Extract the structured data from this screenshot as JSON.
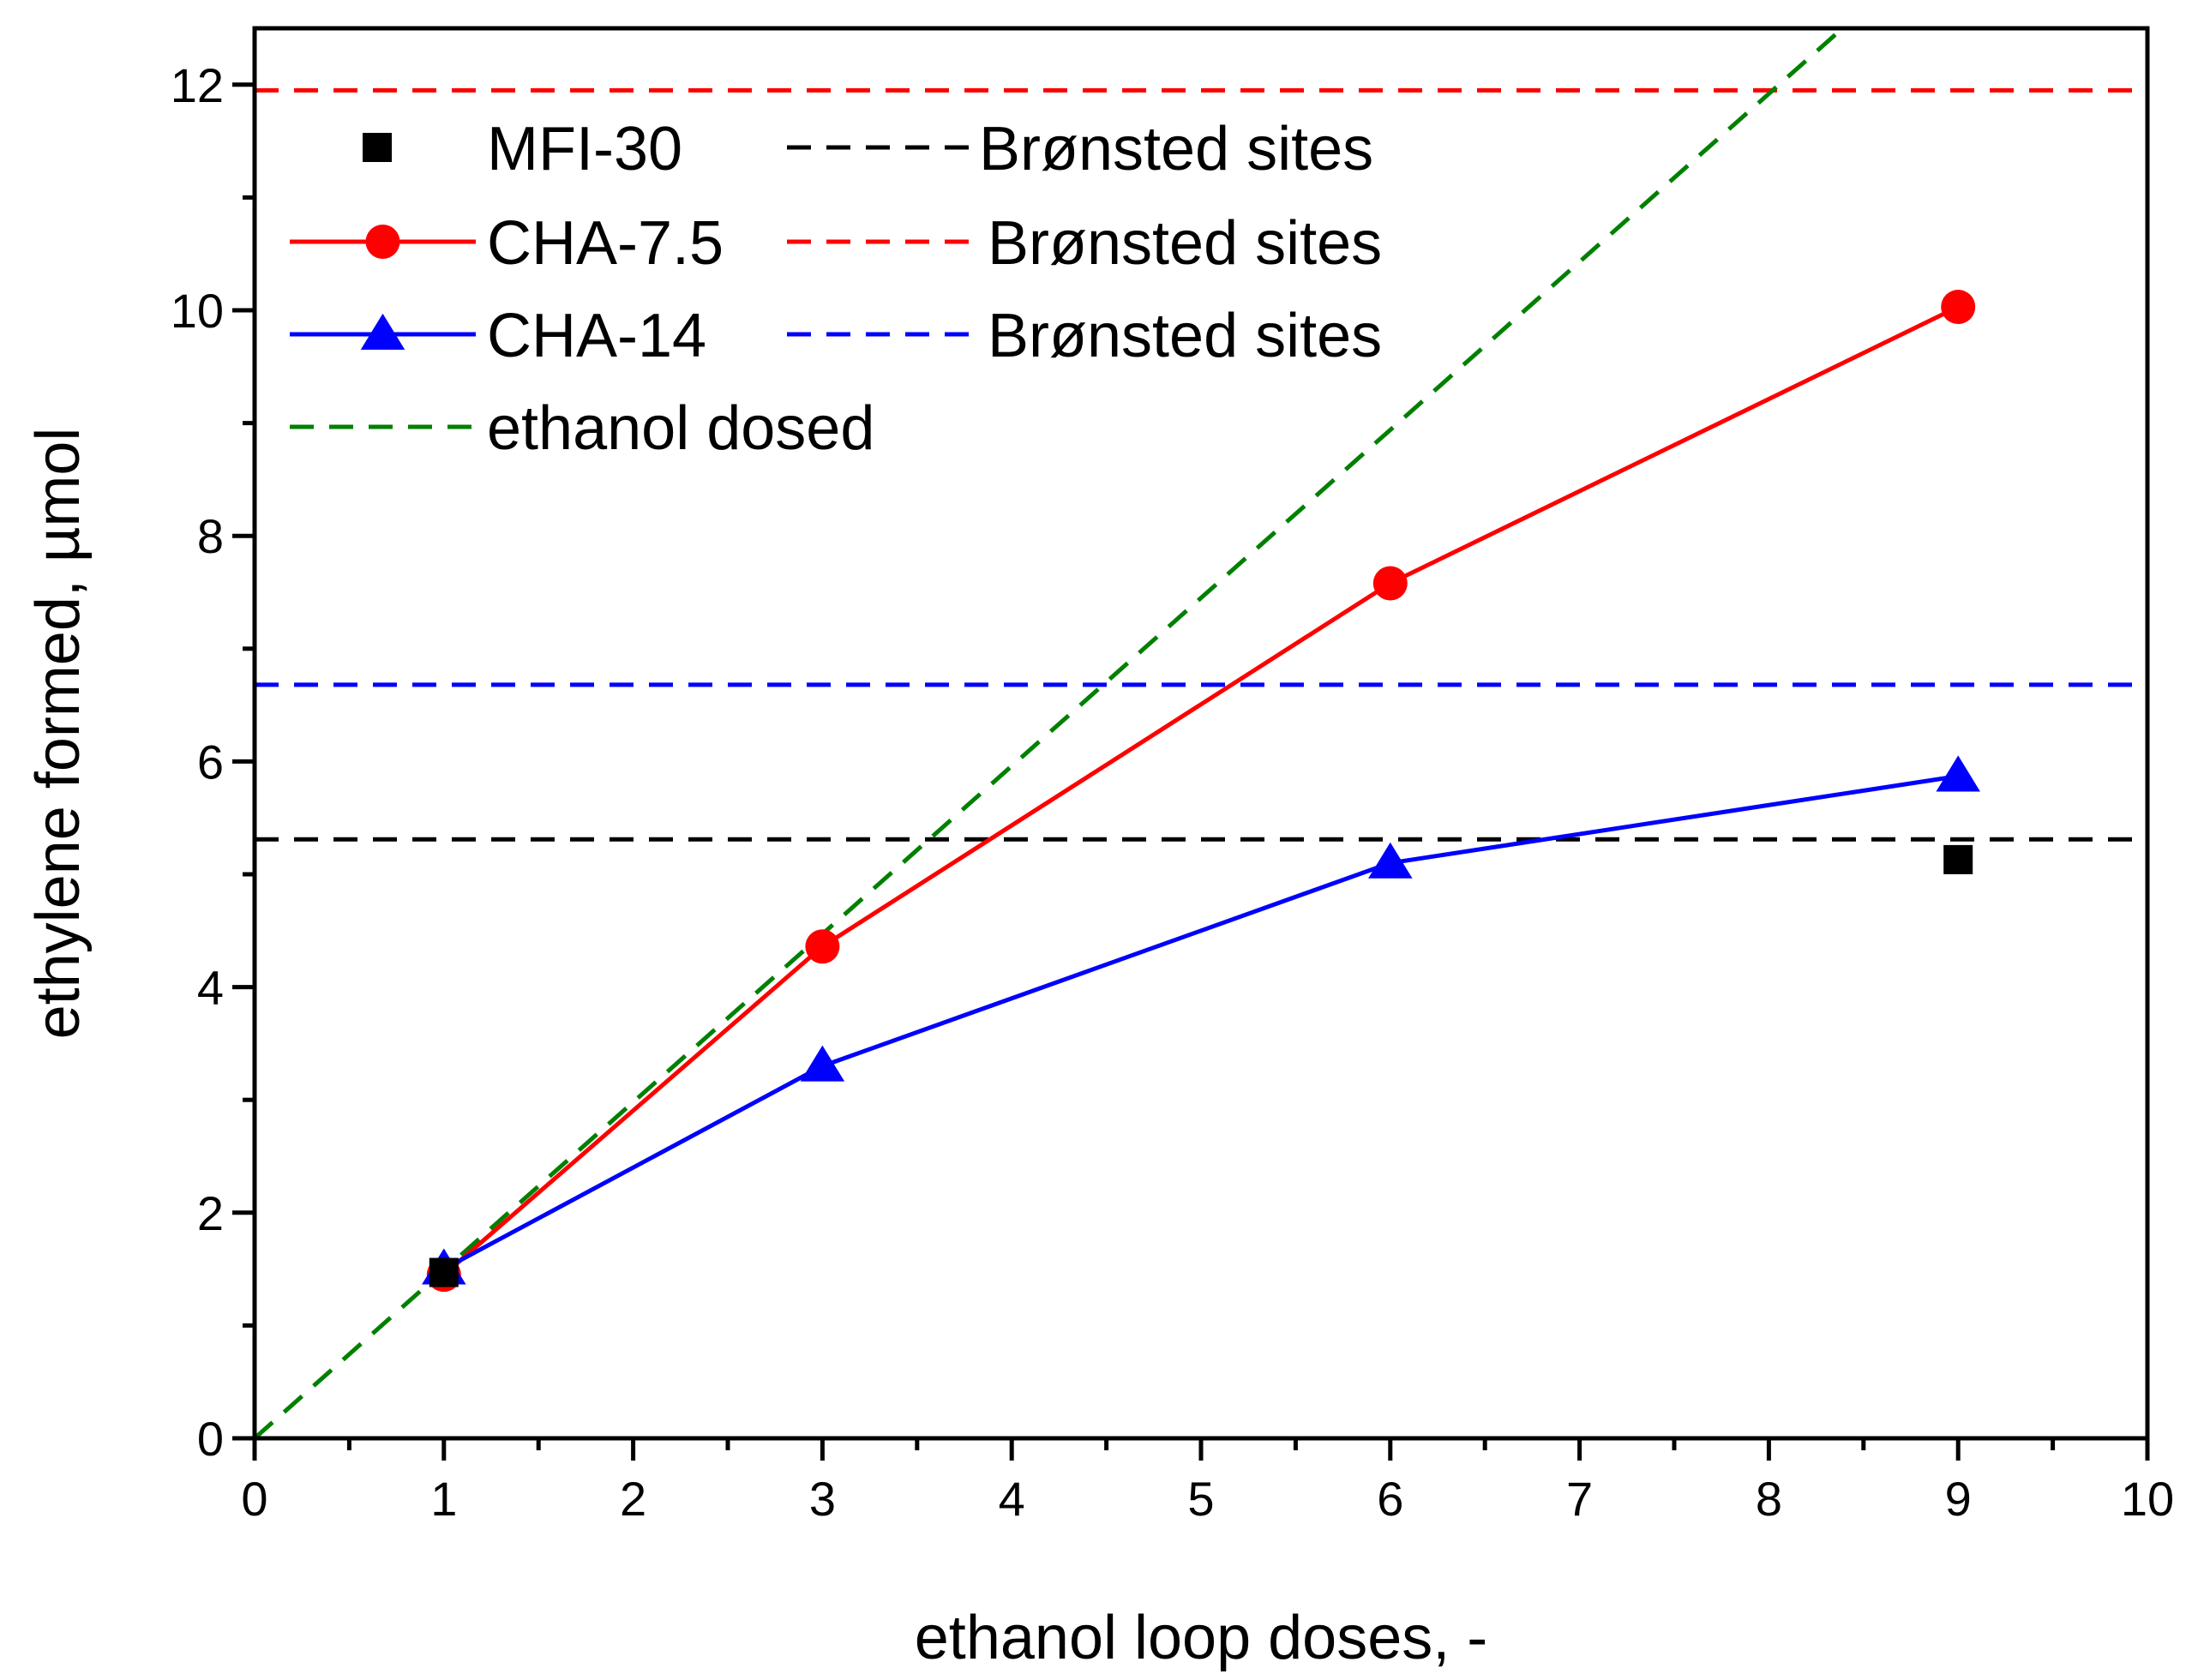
{
  "chart_data": {
    "type": "line",
    "xlabel": "ethanol loop doses, -",
    "ylabel": "ethylene formed, µmol",
    "xlim": [
      0,
      10
    ],
    "ylim": [
      0,
      12.5
    ],
    "x_ticks": [
      "0",
      "1",
      "2",
      "3",
      "4",
      "5",
      "6",
      "7",
      "8",
      "9",
      "10"
    ],
    "y_ticks": [
      "0",
      "2",
      "4",
      "6",
      "8",
      "10",
      "12"
    ],
    "grid": false,
    "legend_position": "top-left",
    "series": [
      {
        "name": "MFI-30",
        "marker": "square",
        "line": "none",
        "color": "#000000",
        "x": [
          1,
          9
        ],
        "y": [
          1.47,
          5.13
        ]
      },
      {
        "name": "CHA-7.5",
        "marker": "circle",
        "line": "solid",
        "color": "#ff0000",
        "x": [
          1,
          3,
          6,
          9
        ],
        "y": [
          1.45,
          4.36,
          7.58,
          10.03
        ]
      },
      {
        "name": "CHA-14",
        "marker": "triangle",
        "line": "solid",
        "color": "#0000ff",
        "x": [
          1,
          3,
          6,
          9
        ],
        "y": [
          1.5,
          3.3,
          5.1,
          5.87
        ]
      }
    ],
    "reference_lines": [
      {
        "name": "Brønsted sites",
        "series": "MFI-30",
        "orientation": "horizontal",
        "y": 5.31,
        "color": "#000000",
        "style": "dashed"
      },
      {
        "name": "Brønsted sites",
        "series": "CHA-7.5",
        "orientation": "horizontal",
        "y": 11.95,
        "color": "#ff0000",
        "style": "dashed"
      },
      {
        "name": "Brønsted sites",
        "series": "CHA-14",
        "orientation": "horizontal",
        "y": 6.68,
        "color": "#0000ff",
        "style": "dashed"
      },
      {
        "name": "ethanol dosed",
        "orientation": "diagonal",
        "slope": 1.49,
        "intercept": 0,
        "color": "#008000",
        "style": "dashed"
      }
    ],
    "legend": [
      {
        "label": "MFI-30",
        "marker": "square",
        "line": "none",
        "color": "#000000",
        "ref_label": "Brønsted sites",
        "ref_color": "#000000"
      },
      {
        "label": "CHA-7.5",
        "marker": "circle",
        "line": "solid",
        "color": "#ff0000",
        "ref_label": "Brønsted sites",
        "ref_color": "#ff0000"
      },
      {
        "label": "CHA-14",
        "marker": "triangle",
        "line": "solid",
        "color": "#0000ff",
        "ref_label": "Brønsted sites",
        "ref_color": "#0000ff"
      },
      {
        "label": "ethanol dosed",
        "marker": "none",
        "line": "dashed",
        "color": "#008000"
      }
    ]
  }
}
